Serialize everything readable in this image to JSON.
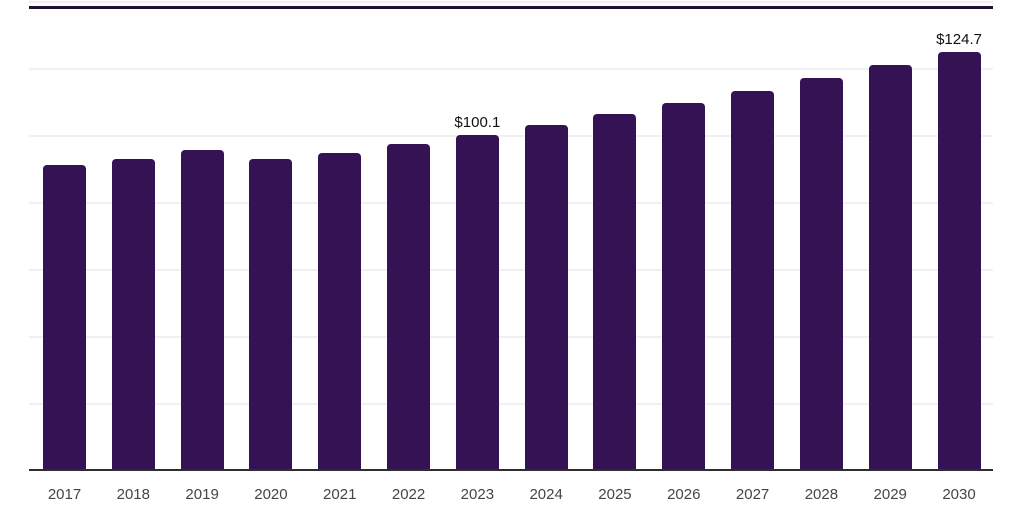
{
  "chart_data": {
    "type": "bar",
    "title": "",
    "xlabel": "",
    "ylabel": "",
    "categories": [
      "2017",
      "2018",
      "2019",
      "2020",
      "2021",
      "2022",
      "2023",
      "2024",
      "2025",
      "2026",
      "2027",
      "2028",
      "2029",
      "2030"
    ],
    "values": [
      91.0,
      92.8,
      95.5,
      92.8,
      94.6,
      97.3,
      100.1,
      103.0,
      106.3,
      109.6,
      113.1,
      117.0,
      120.9,
      124.7
    ],
    "data_labels": [
      {
        "category": "2023",
        "label": "$100.1"
      },
      {
        "category": "2030",
        "label": "$124.7"
      }
    ],
    "ylim": [
      0,
      140
    ],
    "gridline_step": 20,
    "grid": true,
    "legend": false,
    "colors": {
      "bar": "#351253",
      "axis_line": "#2e2e2e",
      "top_border": "#1f1333",
      "gridline": "#f0f0f3",
      "tick_label": "#454545",
      "value_label": "#111111"
    }
  }
}
